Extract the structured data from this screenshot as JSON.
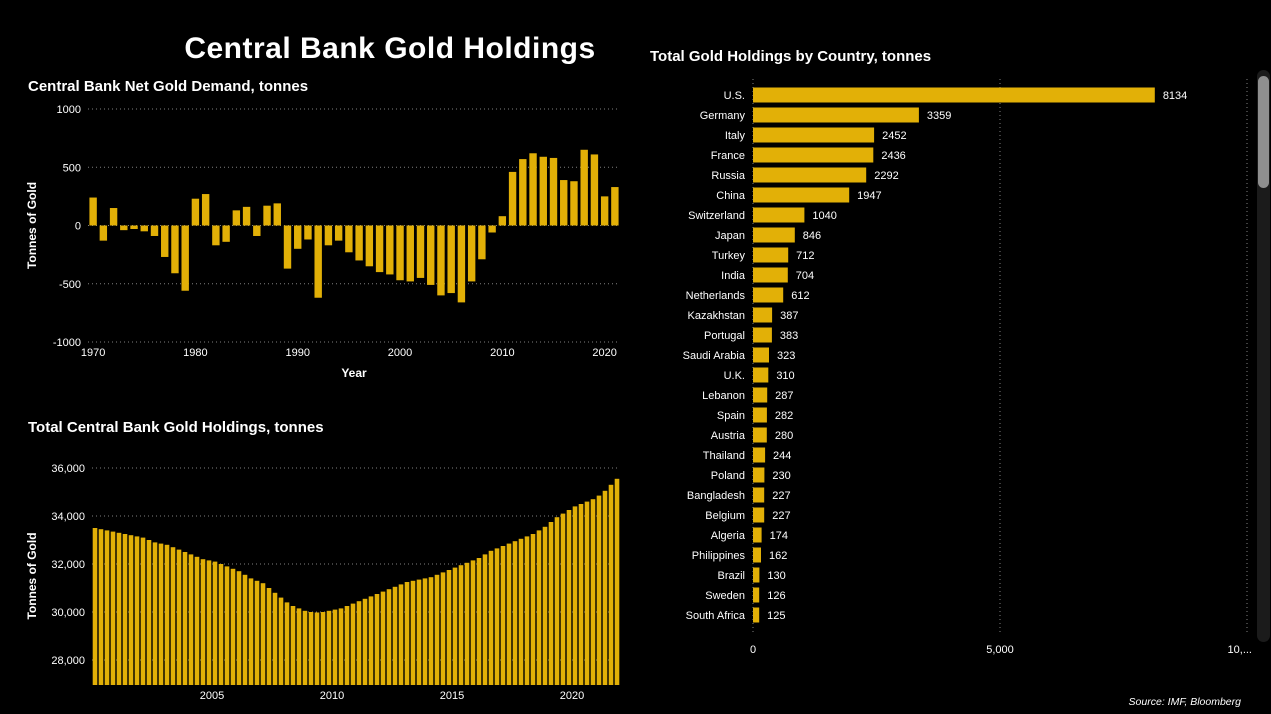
{
  "page_title": "Central Bank Gold Holdings",
  "source_note": "Source: IMF, Bloomberg",
  "colors": {
    "background": "#000000",
    "bar_gold": "#E2B007",
    "text": "#FFFFFF",
    "gridline": "rgba(255,255,255,0.5)"
  },
  "chart_data": [
    {
      "id": "net-demand",
      "type": "bar",
      "title": "Central Bank Net Gold Demand, tonnes",
      "xlabel": "Year",
      "ylabel": "Tonnes of Gold",
      "ylim": [
        -1000,
        1000
      ],
      "yticks": [
        1000,
        500,
        0,
        -500,
        -1000
      ],
      "ytick_labels": [
        "1000",
        "500",
        "0",
        "-500",
        "-1000"
      ],
      "xticks": [
        1970,
        1980,
        1990,
        2000,
        2010,
        2020
      ],
      "x_start": 1970,
      "x_step": 1,
      "values": [
        240,
        -130,
        150,
        -40,
        -30,
        -50,
        -90,
        -270,
        -410,
        -560,
        230,
        270,
        -170,
        -140,
        130,
        160,
        -90,
        170,
        190,
        -370,
        -200,
        -120,
        -620,
        -170,
        -130,
        -230,
        -300,
        -350,
        -400,
        -420,
        -470,
        -480,
        -450,
        -510,
        -600,
        -580,
        -660,
        -480,
        -290,
        -60,
        80,
        460,
        570,
        620,
        590,
        580,
        390,
        380,
        650,
        610,
        250,
        330
      ]
    },
    {
      "id": "total-holdings",
      "type": "bar",
      "title": "Total Central Bank Gold Holdings, tonnes",
      "xlabel": "",
      "ylabel": "Tonnes of Gold",
      "ylim": [
        26958,
        36500
      ],
      "yticks": [
        36000,
        34000,
        32000,
        30000,
        28000
      ],
      "ytick_labels": [
        "36,000",
        "34,000",
        "32,000",
        "30,000",
        "28,000"
      ],
      "xticks": [
        2005,
        2010,
        2015,
        2020
      ],
      "x_start": 2000,
      "x_step": 0.25,
      "values": [
        33500,
        33450,
        33400,
        33350,
        33300,
        33250,
        33200,
        33150,
        33100,
        33000,
        32900,
        32850,
        32800,
        32700,
        32600,
        32500,
        32400,
        32300,
        32200,
        32150,
        32100,
        32000,
        31900,
        31800,
        31700,
        31550,
        31400,
        31300,
        31200,
        31000,
        30800,
        30600,
        30400,
        30250,
        30150,
        30050,
        30000,
        29980,
        30000,
        30050,
        30100,
        30150,
        30250,
        30350,
        30450,
        30550,
        30650,
        30750,
        30850,
        30950,
        31050,
        31150,
        31250,
        31300,
        31350,
        31400,
        31450,
        31550,
        31650,
        31750,
        31850,
        31950,
        32050,
        32150,
        32250,
        32400,
        32550,
        32650,
        32750,
        32850,
        32950,
        33050,
        33150,
        33250,
        33400,
        33550,
        33750,
        33950,
        34100,
        34250,
        34400,
        34500,
        34600,
        34700,
        34850,
        35050,
        35300,
        35550
      ]
    },
    {
      "id": "by-country",
      "type": "bar-horizontal",
      "title": "Total Gold Holdings by Country, tonnes",
      "xlim": [
        0,
        10000
      ],
      "xticks": [
        0,
        5000,
        10000
      ],
      "xtick_labels": [
        "0",
        "5,000",
        "10,..."
      ],
      "categories": [
        "U.S.",
        "Germany",
        "Italy",
        "France",
        "Russia",
        "China",
        "Switzerland",
        "Japan",
        "Turkey",
        "India",
        "Netherlands",
        "Kazakhstan",
        "Portugal",
        "Saudi Arabia",
        "U.K.",
        "Lebanon",
        "Spain",
        "Austria",
        "Thailand",
        "Poland",
        "Bangladesh",
        "Belgium",
        "Algeria",
        "Philippines",
        "Brazil",
        "Sweden",
        "South Africa"
      ],
      "values": [
        8134,
        3359,
        2452,
        2436,
        2292,
        1947,
        1040,
        846,
        712,
        704,
        612,
        387,
        383,
        323,
        310,
        287,
        282,
        280,
        244,
        230,
        227,
        227,
        174,
        162,
        130,
        126,
        125
      ]
    }
  ]
}
